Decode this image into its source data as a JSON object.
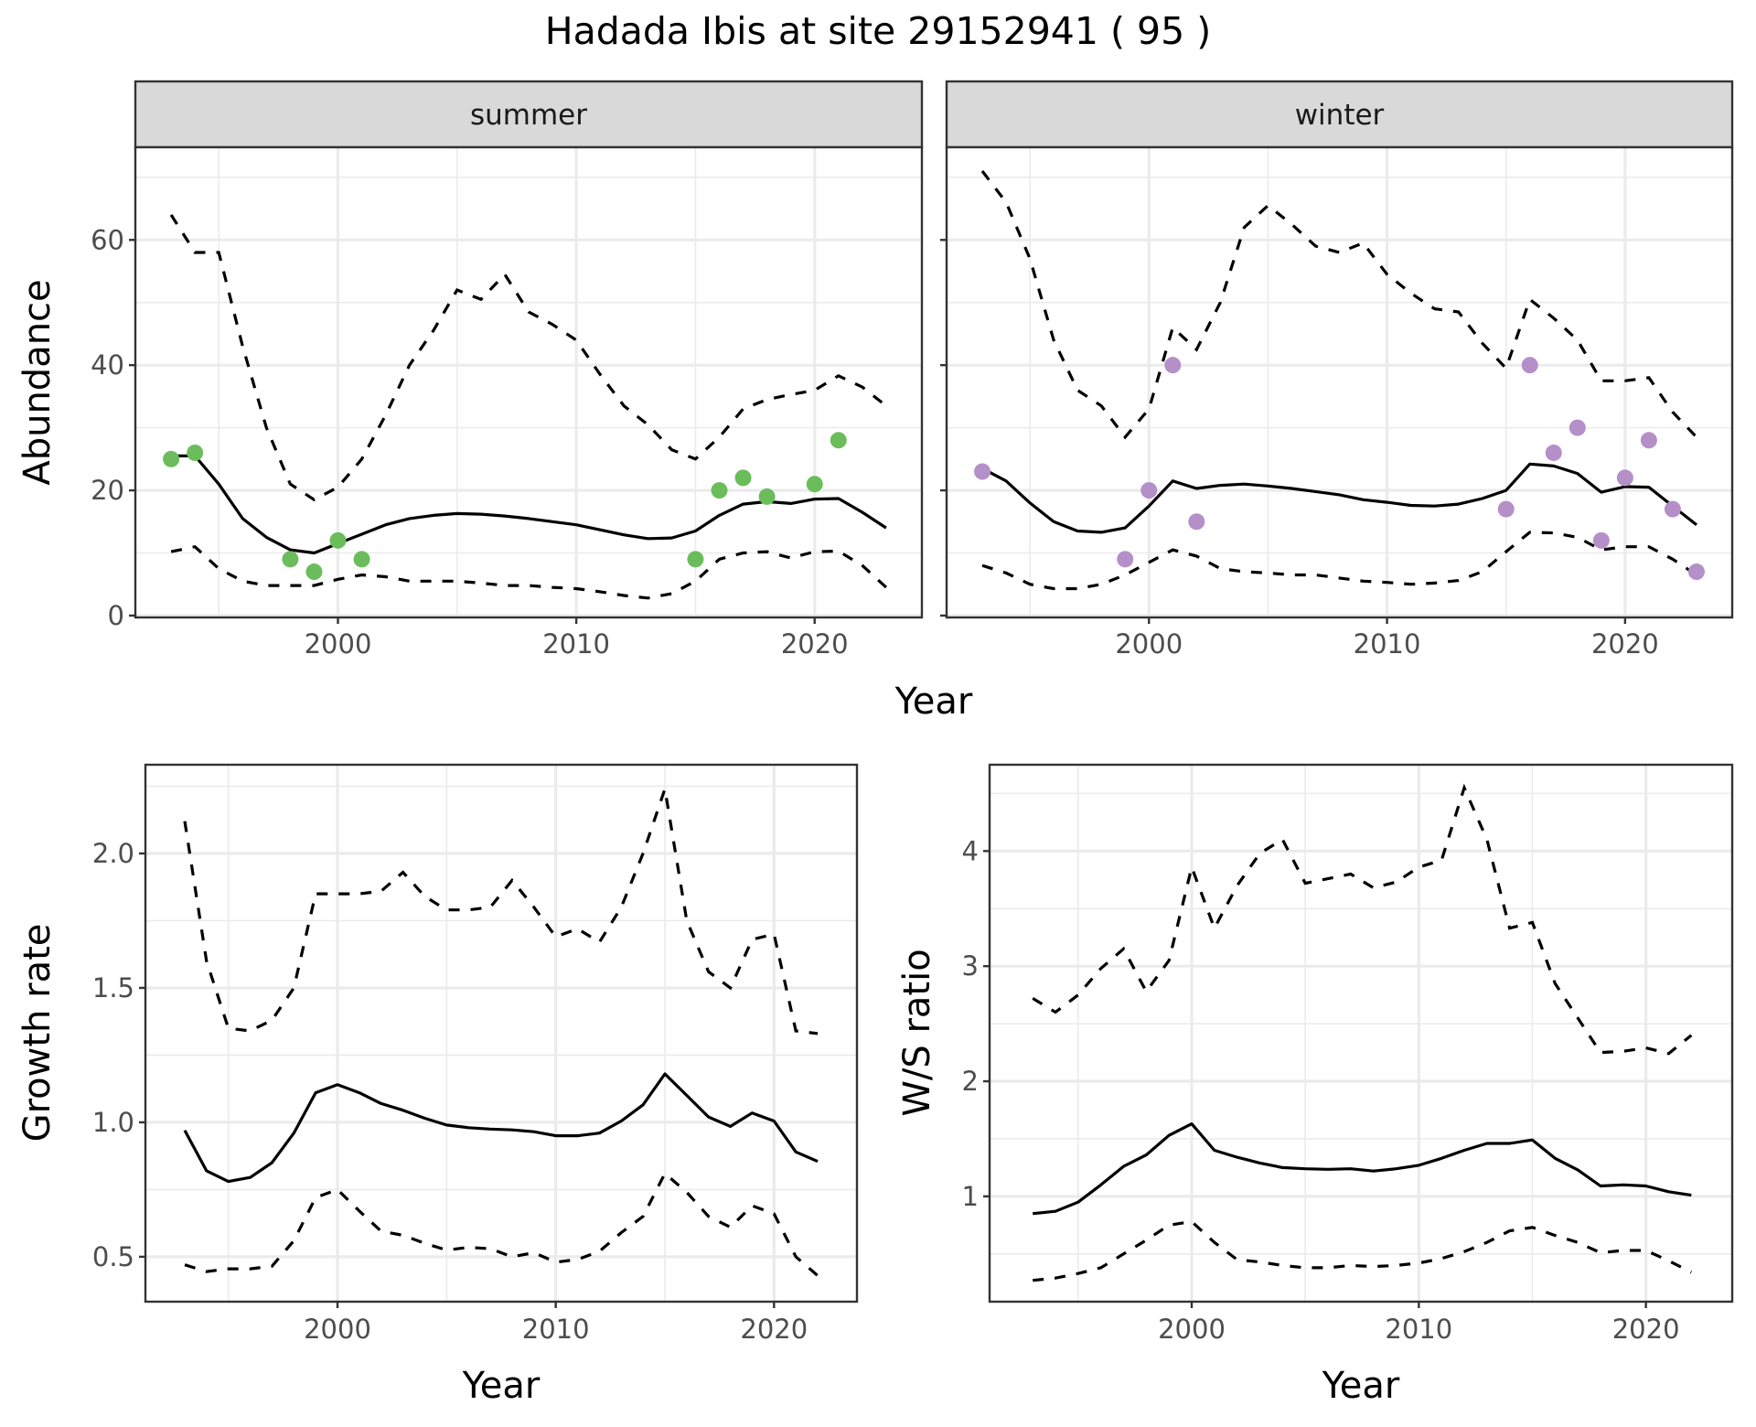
{
  "title": "Hadada Ibis at site 29152941 ( 95 )",
  "colors": {
    "summer_points": "#6bbd5b",
    "winter_points": "#b48fc8",
    "lines": "#000000",
    "strip": "#d9d9d9",
    "grid": "#ebebeb"
  },
  "chart_data": [
    {
      "id": "abundance-summer",
      "type": "line",
      "facet": "summer",
      "title": "",
      "xlabel": "Year",
      "ylabel": "Abundance",
      "xlim": [
        1991.5,
        2024.5
      ],
      "ylim": [
        -0.3,
        74.8
      ],
      "xticks": [
        2000,
        2010,
        2020
      ],
      "xtick_labels": [
        "2000",
        "2010",
        "2020"
      ],
      "yticks": [
        0,
        20,
        40,
        60
      ],
      "ytick_labels": [
        "0",
        "20",
        "40",
        "60"
      ],
      "grid": true,
      "x": [
        1993,
        1994,
        1995,
        1996,
        1997,
        1998,
        1999,
        2000,
        2001,
        2002,
        2003,
        2004,
        2005,
        2006,
        2007,
        2008,
        2009,
        2010,
        2011,
        2012,
        2013,
        2014,
        2015,
        2016,
        2017,
        2018,
        2019,
        2020,
        2021,
        2022,
        2023
      ],
      "series": [
        {
          "name": "mean",
          "style": "solid",
          "values": [
            25.5,
            25.5,
            21,
            15.5,
            12.5,
            10.5,
            10,
            11.5,
            13,
            14.5,
            15.5,
            16,
            16.3,
            16.2,
            15.9,
            15.5,
            15,
            14.5,
            13.7,
            12.9,
            12.3,
            12.4,
            13.5,
            16,
            17.8,
            18.2,
            17.9,
            18.6,
            18.7,
            16.5,
            14
          ]
        },
        {
          "name": "upper",
          "style": "dashed",
          "values": [
            64,
            58,
            58,
            43,
            30,
            21,
            18.5,
            20.5,
            25,
            32,
            40,
            45.5,
            52,
            50.5,
            54.5,
            48.5,
            46.5,
            44,
            38.5,
            33.5,
            30.5,
            26.5,
            25,
            28.5,
            33,
            34.5,
            35.3,
            36,
            38.3,
            36.5,
            33.5
          ]
        },
        {
          "name": "lower",
          "style": "dashed",
          "values": [
            10.2,
            11,
            7.5,
            5.5,
            4.8,
            4.8,
            4.8,
            5.8,
            6.5,
            6.2,
            5.5,
            5.5,
            5.5,
            5.2,
            4.8,
            4.8,
            4.5,
            4.3,
            3.8,
            3.2,
            2.8,
            3.5,
            5.5,
            9,
            10,
            10.2,
            9.2,
            10.2,
            10.3,
            8,
            4.5
          ]
        }
      ],
      "points": {
        "name": "observed counts",
        "x": [
          1993,
          1994,
          1998,
          1999,
          2000,
          2001,
          2015,
          2016,
          2017,
          2018,
          2020,
          2021
        ],
        "y": [
          25,
          26,
          9,
          7,
          12,
          9,
          9,
          20,
          22,
          19,
          21,
          28
        ]
      }
    },
    {
      "id": "abundance-winter",
      "type": "line",
      "facet": "winter",
      "title": "",
      "xlabel": "Year",
      "ylabel": "",
      "xlim": [
        1991.5,
        2024.5
      ],
      "ylim": [
        -0.3,
        74.8
      ],
      "xticks": [
        2000,
        2010,
        2020
      ],
      "xtick_labels": [
        "2000",
        "2010",
        "2020"
      ],
      "yticks": [
        0,
        20,
        40,
        60
      ],
      "ytick_labels": [],
      "grid": true,
      "x": [
        1993,
        1994,
        1995,
        1996,
        1997,
        1998,
        1999,
        2000,
        2001,
        2002,
        2003,
        2004,
        2005,
        2006,
        2007,
        2008,
        2009,
        2010,
        2011,
        2012,
        2013,
        2014,
        2015,
        2016,
        2017,
        2018,
        2019,
        2020,
        2021,
        2022,
        2023
      ],
      "series": [
        {
          "name": "mean",
          "style": "solid",
          "values": [
            23.5,
            21.5,
            18,
            15,
            13.5,
            13.3,
            14,
            17.5,
            21.5,
            20.3,
            20.8,
            21,
            20.7,
            20.3,
            19.8,
            19.3,
            18.5,
            18.1,
            17.6,
            17.5,
            17.8,
            18.7,
            20,
            24.2,
            23.9,
            22.7,
            19.7,
            20.6,
            20.5,
            17.5,
            14.5
          ]
        },
        {
          "name": "upper",
          "style": "dashed",
          "values": [
            71,
            66,
            57,
            44,
            36,
            33.5,
            28.5,
            33,
            46,
            42.5,
            50,
            62,
            65.5,
            62.5,
            59,
            58,
            59.5,
            54.5,
            51.5,
            49,
            48.5,
            43.5,
            39.5,
            50.5,
            47.5,
            44,
            37.5,
            37.5,
            38,
            32.5,
            28.5
          ]
        },
        {
          "name": "lower",
          "style": "dashed",
          "values": [
            8,
            6.8,
            5,
            4.3,
            4.3,
            5,
            6.5,
            8.5,
            10.5,
            9.5,
            7.5,
            7,
            6.8,
            6.5,
            6.5,
            6,
            5.5,
            5.3,
            5,
            5.2,
            5.6,
            7,
            10.2,
            13.3,
            13.2,
            12.5,
            10.5,
            11,
            11,
            9,
            6.5
          ]
        }
      ],
      "points": {
        "name": "observed counts",
        "x": [
          1993,
          1999,
          2000,
          2001,
          2002,
          2015,
          2016,
          2017,
          2018,
          2019,
          2020,
          2021,
          2022,
          2023
        ],
        "y": [
          23,
          9,
          20,
          40,
          15,
          17,
          40,
          26,
          30,
          12,
          22,
          28,
          17,
          7
        ]
      }
    },
    {
      "id": "growth-rate",
      "type": "line",
      "title": "",
      "xlabel": "Year",
      "ylabel": "Growth rate",
      "xlim": [
        1991.2,
        2023.8
      ],
      "ylim": [
        0.333,
        2.33
      ],
      "xticks": [
        2000,
        2010,
        2020
      ],
      "xtick_labels": [
        "2000",
        "2010",
        "2020"
      ],
      "yticks": [
        0.5,
        1.0,
        1.5,
        2.0
      ],
      "ytick_labels": [
        "0.5",
        "1.0",
        "1.5",
        "2.0"
      ],
      "grid": true,
      "x": [
        1993,
        1994,
        1995,
        1996,
        1997,
        1998,
        1999,
        2000,
        2001,
        2002,
        2003,
        2004,
        2005,
        2006,
        2007,
        2008,
        2009,
        2010,
        2011,
        2012,
        2013,
        2014,
        2015,
        2016,
        2017,
        2018,
        2019,
        2020,
        2021,
        2022
      ],
      "series": [
        {
          "name": "mean",
          "style": "solid",
          "values": [
            0.97,
            0.82,
            0.78,
            0.795,
            0.85,
            0.96,
            1.11,
            1.14,
            1.11,
            1.07,
            1.045,
            1.015,
            0.99,
            0.98,
            0.975,
            0.972,
            0.965,
            0.95,
            0.95,
            0.96,
            1.005,
            1.065,
            1.18,
            1.1,
            1.02,
            0.985,
            1.035,
            1.005,
            0.89,
            0.855
          ]
        },
        {
          "name": "upper",
          "style": "dashed",
          "values": [
            2.12,
            1.6,
            1.35,
            1.34,
            1.38,
            1.5,
            1.85,
            1.85,
            1.85,
            1.86,
            1.93,
            1.84,
            1.79,
            1.79,
            1.8,
            1.9,
            1.8,
            1.69,
            1.72,
            1.67,
            1.8,
            2.0,
            2.24,
            1.75,
            1.56,
            1.5,
            1.68,
            1.7,
            1.34,
            1.33
          ]
        },
        {
          "name": "lower",
          "style": "dashed",
          "values": [
            0.47,
            0.445,
            0.455,
            0.455,
            0.465,
            0.56,
            0.72,
            0.75,
            0.67,
            0.595,
            0.58,
            0.55,
            0.525,
            0.535,
            0.53,
            0.5,
            0.515,
            0.48,
            0.49,
            0.52,
            0.59,
            0.65,
            0.81,
            0.74,
            0.65,
            0.61,
            0.69,
            0.66,
            0.5,
            0.43
          ]
        }
      ]
    },
    {
      "id": "ws-ratio",
      "type": "line",
      "title": "",
      "xlabel": "Year",
      "ylabel": "W/S ratio",
      "xlim": [
        1991.1,
        2023.8
      ],
      "ylim": [
        0.085,
        4.75
      ],
      "xticks": [
        2000,
        2010,
        2020
      ],
      "xtick_labels": [
        "2000",
        "2010",
        "2020"
      ],
      "yticks": [
        1,
        2,
        3,
        4
      ],
      "ytick_labels": [
        "1",
        "2",
        "3",
        "4"
      ],
      "grid": true,
      "x": [
        1993,
        1994,
        1995,
        1996,
        1997,
        1998,
        1999,
        2000,
        2001,
        2002,
        2003,
        2004,
        2005,
        2006,
        2007,
        2008,
        2009,
        2010,
        2011,
        2012,
        2013,
        2014,
        2015,
        2016,
        2017,
        2018,
        2019,
        2020,
        2021,
        2022
      ],
      "series": [
        {
          "name": "mean",
          "style": "solid",
          "values": [
            0.85,
            0.87,
            0.95,
            1.1,
            1.26,
            1.36,
            1.53,
            1.63,
            1.4,
            1.34,
            1.29,
            1.25,
            1.24,
            1.235,
            1.24,
            1.22,
            1.24,
            1.27,
            1.33,
            1.4,
            1.46,
            1.46,
            1.49,
            1.33,
            1.23,
            1.09,
            1.1,
            1.09,
            1.04,
            1.01
          ]
        },
        {
          "name": "upper",
          "style": "dashed",
          "values": [
            2.72,
            2.6,
            2.75,
            2.98,
            3.15,
            2.78,
            3.05,
            3.86,
            3.33,
            3.7,
            3.98,
            4.1,
            3.72,
            3.76,
            3.8,
            3.68,
            3.73,
            3.86,
            3.92,
            4.55,
            4.1,
            3.33,
            3.38,
            2.85,
            2.55,
            2.25,
            2.26,
            2.29,
            2.24,
            2.4
          ]
        },
        {
          "name": "lower",
          "style": "dashed",
          "values": [
            0.27,
            0.29,
            0.33,
            0.38,
            0.5,
            0.62,
            0.75,
            0.78,
            0.6,
            0.45,
            0.43,
            0.4,
            0.38,
            0.38,
            0.4,
            0.39,
            0.4,
            0.42,
            0.46,
            0.52,
            0.6,
            0.7,
            0.73,
            0.66,
            0.6,
            0.51,
            0.53,
            0.53,
            0.44,
            0.34
          ]
        }
      ]
    }
  ]
}
